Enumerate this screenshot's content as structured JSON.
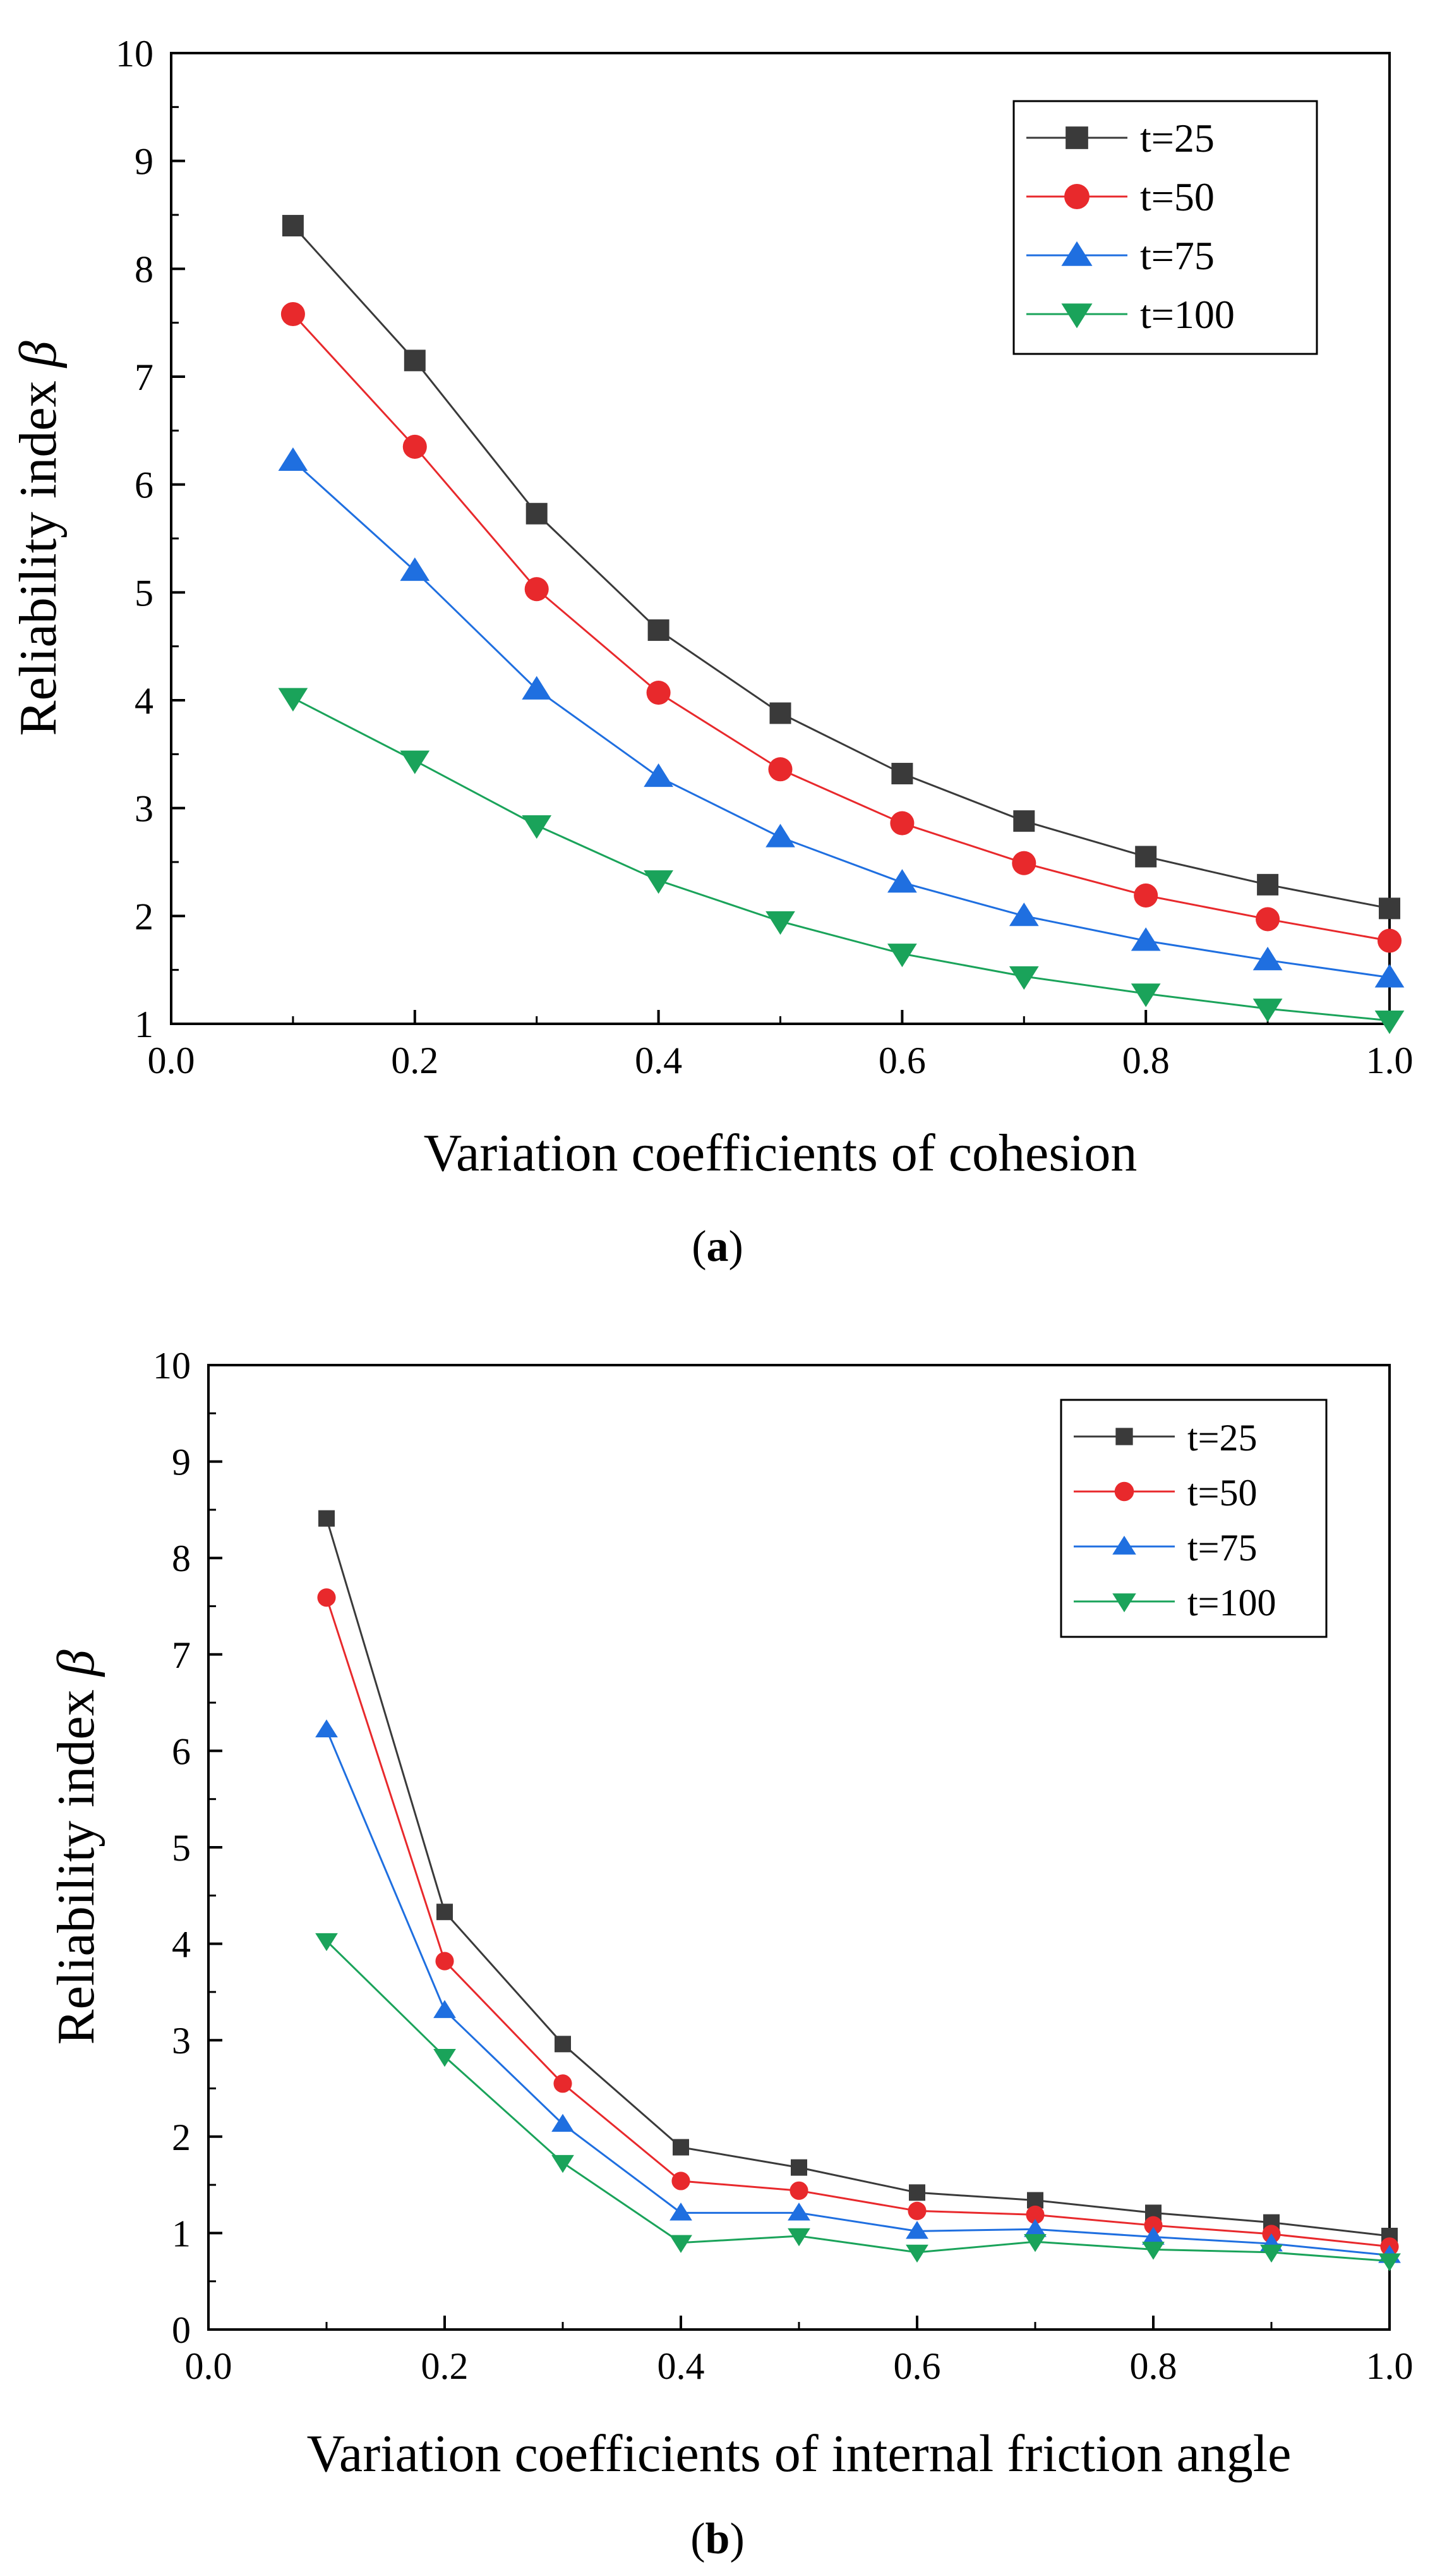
{
  "figure": {
    "caption_a": "a",
    "caption_b": "b"
  },
  "colors": {
    "t=25": "#3a3a3a",
    "t=50": "#e8292c",
    "t=75": "#1f6fe0",
    "t=100": "#1aa35a"
  },
  "chart_data": [
    {
      "type": "line",
      "panel": "a",
      "title": "",
      "xlabel": "Variation coefficients of cohesion",
      "ylabel": "Reliability index",
      "ylabel_symbol": "β",
      "xlim": [
        0.0,
        1.0
      ],
      "ylim": [
        1,
        10
      ],
      "xticks": [
        "0.0",
        "0.2",
        "0.4",
        "0.6",
        "0.8",
        "1.0"
      ],
      "yticks": [
        "1",
        "2",
        "3",
        "4",
        "5",
        "6",
        "7",
        "8",
        "9",
        "10"
      ],
      "legend_position": "top-right",
      "x": [
        0.1,
        0.2,
        0.3,
        0.4,
        0.5,
        0.6,
        0.7,
        0.8,
        0.9,
        1.0
      ],
      "series": [
        {
          "name": "t=25",
          "marker": "square",
          "values": [
            8.4,
            7.15,
            5.73,
            4.65,
            3.88,
            3.32,
            2.88,
            2.55,
            2.29,
            2.07
          ]
        },
        {
          "name": "t=50",
          "marker": "circle",
          "values": [
            7.58,
            6.35,
            5.03,
            4.07,
            3.36,
            2.86,
            2.49,
            2.19,
            1.97,
            1.77
          ]
        },
        {
          "name": "t=75",
          "marker": "triangle-up",
          "values": [
            6.22,
            5.2,
            4.1,
            3.29,
            2.73,
            2.31,
            2.0,
            1.77,
            1.59,
            1.43
          ]
        },
        {
          "name": "t=100",
          "marker": "triangle-down",
          "values": [
            4.02,
            3.44,
            2.84,
            2.33,
            1.95,
            1.65,
            1.44,
            1.28,
            1.14,
            1.03
          ]
        }
      ]
    },
    {
      "type": "line",
      "panel": "b",
      "title": "",
      "xlabel": "Variation coefficients of internal friction angle",
      "ylabel": "Reliability index",
      "ylabel_symbol": "β",
      "xlim": [
        0.0,
        1.0
      ],
      "ylim": [
        0,
        10
      ],
      "xticks": [
        "0.0",
        "0.2",
        "0.4",
        "0.6",
        "0.8",
        "1.0"
      ],
      "yticks": [
        "0",
        "1",
        "2",
        "3",
        "4",
        "5",
        "6",
        "7",
        "8",
        "9",
        "10"
      ],
      "legend_position": "top-right",
      "x": [
        0.1,
        0.2,
        0.3,
        0.4,
        0.5,
        0.6,
        0.7,
        0.8,
        0.9,
        1.0
      ],
      "series": [
        {
          "name": "t=25",
          "marker": "square",
          "values": [
            8.41,
            4.33,
            2.96,
            1.89,
            1.68,
            1.42,
            1.34,
            1.21,
            1.11,
            0.97
          ]
        },
        {
          "name": "t=50",
          "marker": "circle",
          "values": [
            7.59,
            3.82,
            2.55,
            1.54,
            1.44,
            1.23,
            1.19,
            1.08,
            0.99,
            0.86
          ]
        },
        {
          "name": "t=75",
          "marker": "triangle-up",
          "values": [
            6.22,
            3.31,
            2.13,
            1.21,
            1.21,
            1.02,
            1.04,
            0.96,
            0.89,
            0.77
          ]
        },
        {
          "name": "t=100",
          "marker": "triangle-down",
          "values": [
            4.03,
            2.83,
            1.73,
            0.9,
            0.97,
            0.8,
            0.91,
            0.83,
            0.8,
            0.71
          ]
        }
      ]
    }
  ]
}
